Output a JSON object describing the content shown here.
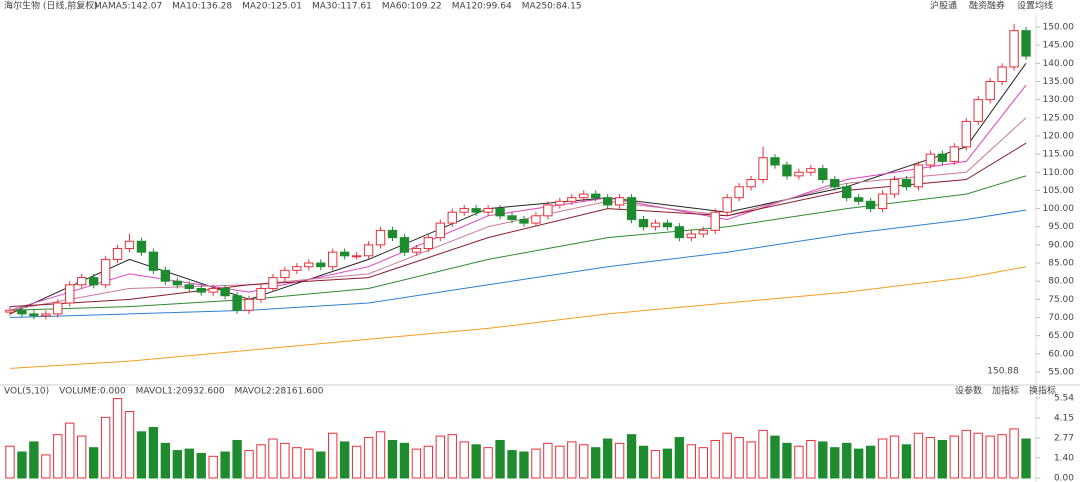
{
  "chart_data": {
    "type": "candlestick",
    "title": "海尔生物 (日线,前复权)",
    "ma_prefix": "MA",
    "toolbar": [
      "沪股通",
      "融资融券",
      "设置均线"
    ],
    "max_label": "150.88",
    "up_color": "#e8303a",
    "down_color": "#1e8c2e",
    "open": [
      71.5,
      72,
      71,
      70.5,
      71,
      74,
      79,
      81,
      79,
      86,
      89,
      91,
      88,
      83,
      80,
      79,
      78,
      77,
      78,
      76,
      72,
      75,
      78,
      81,
      83,
      84,
      85,
      84,
      88,
      87,
      87,
      90,
      94,
      92,
      88,
      89,
      92,
      96,
      99,
      100,
      99,
      100,
      98,
      97,
      96,
      98,
      101,
      102,
      103,
      104,
      103,
      101,
      103,
      97,
      95,
      96,
      95,
      92,
      93,
      94,
      99,
      103,
      106,
      108,
      114,
      112,
      109,
      110,
      111,
      108,
      106,
      103,
      102,
      100,
      104,
      108,
      106,
      112,
      115,
      113,
      117,
      124,
      130,
      135,
      139,
      149
    ],
    "high": [
      73,
      73,
      72,
      72,
      75,
      80,
      82,
      82,
      87,
      90,
      93,
      92,
      89,
      84,
      81,
      80,
      79,
      79,
      79,
      77,
      76,
      79,
      82,
      84,
      85,
      86,
      86,
      89,
      89,
      88,
      91,
      95,
      95,
      93,
      90,
      93,
      97,
      100,
      101,
      101,
      101,
      101,
      99,
      98,
      99,
      102,
      103,
      104,
      105,
      105,
      104,
      104,
      104,
      98,
      97,
      97,
      96,
      94,
      95,
      100,
      104,
      107,
      109,
      117,
      115,
      113,
      111,
      112,
      112,
      109,
      107,
      104,
      103,
      105,
      109,
      109,
      113,
      116,
      116,
      118,
      125,
      131,
      136,
      140,
      150.88,
      150
    ],
    "low": [
      70.5,
      70,
      69.5,
      69.5,
      70,
      73,
      78,
      78,
      78,
      85,
      88,
      87,
      82,
      79,
      78,
      77,
      76,
      76,
      75,
      71,
      71,
      74,
      77,
      80,
      82,
      83,
      83,
      83,
      86,
      86,
      86,
      89,
      91,
      87,
      87,
      88,
      91,
      95,
      98,
      98,
      98,
      97,
      96,
      95,
      95,
      97,
      100,
      101,
      102,
      102,
      100,
      100,
      96,
      94,
      94,
      94,
      91,
      91,
      92,
      93,
      98,
      102,
      105,
      107,
      111,
      108,
      108,
      109,
      107,
      105,
      102,
      101,
      99,
      99,
      103,
      105,
      105,
      111,
      112,
      112,
      116,
      123,
      129,
      134,
      138,
      141
    ],
    "close": [
      72,
      71,
      70.5,
      71,
      74,
      79,
      81,
      79,
      86,
      89,
      91,
      88,
      83,
      80,
      79,
      78,
      77,
      78,
      76,
      72,
      75,
      78,
      81,
      83,
      84,
      85,
      84,
      88,
      87,
      87,
      90,
      94,
      92,
      88,
      89,
      92,
      96,
      99,
      100,
      99,
      100,
      98,
      97,
      96,
      98,
      101,
      102,
      103,
      104,
      103,
      101,
      103,
      97,
      95,
      96,
      95,
      92,
      93,
      94,
      99,
      103,
      106,
      108,
      114,
      112,
      109,
      110,
      111,
      108,
      106,
      103,
      102,
      100,
      104,
      108,
      106,
      112,
      115,
      113,
      117,
      124,
      130,
      135,
      139,
      149,
      142
    ],
    "ylim": [
      55,
      150
    ],
    "yticks": [
      {
        "value": 150,
        "label": "150.00"
      },
      {
        "value": 145,
        "label": "145.00"
      },
      {
        "value": 140,
        "label": "140.00"
      },
      {
        "value": 135,
        "label": "135.00"
      },
      {
        "value": 130,
        "label": "130.00"
      },
      {
        "value": 125,
        "label": "125.00"
      },
      {
        "value": 120,
        "label": "120.00"
      },
      {
        "value": 115,
        "label": "115.00"
      },
      {
        "value": 110,
        "label": "110.00"
      },
      {
        "value": 105,
        "label": "105.00"
      },
      {
        "value": 100,
        "label": "100.00"
      },
      {
        "value": 95,
        "label": "95.00"
      },
      {
        "value": 90,
        "label": "90.00"
      },
      {
        "value": 85,
        "label": "85.00"
      },
      {
        "value": 80,
        "label": "80.00"
      },
      {
        "value": 75,
        "label": "75.00"
      },
      {
        "value": 70,
        "label": "70.00"
      },
      {
        "value": 65,
        "label": "65.00"
      },
      {
        "value": 60,
        "label": "60.00"
      },
      {
        "value": 55,
        "label": "55.00"
      }
    ],
    "ma": [
      {
        "name": "MA5:142.07",
        "color": "#222222",
        "x": [
          0,
          10,
          20,
          30,
          40,
          50,
          60,
          70,
          80,
          85
        ],
        "values": [
          71,
          86,
          75,
          86,
          100,
          103,
          99,
          106,
          117,
          140
        ]
      },
      {
        "name": "MA10:136.28",
        "color": "#e040c0",
        "x": [
          0,
          10,
          20,
          30,
          40,
          50,
          60,
          70,
          80,
          85
        ],
        "values": [
          72,
          82,
          77,
          84,
          98,
          103,
          97,
          108,
          113,
          134
        ]
      },
      {
        "name": "MA20:125.01",
        "color": "#c87898",
        "x": [
          0,
          10,
          20,
          30,
          40,
          50,
          60,
          70,
          80,
          85
        ],
        "values": [
          72,
          78,
          79,
          82,
          95,
          102,
          98,
          107,
          110,
          125
        ]
      },
      {
        "name": "MA30:117.61",
        "color": "#8a1a2a",
        "x": [
          0,
          10,
          20,
          30,
          40,
          50,
          60,
          70,
          80,
          85
        ],
        "values": [
          73,
          75,
          79,
          81,
          92,
          100,
          98,
          105,
          108,
          118
        ]
      },
      {
        "name": "MA60:109.22",
        "color": "#2e8b2e",
        "x": [
          0,
          10,
          20,
          30,
          40,
          50,
          60,
          70,
          80,
          85
        ],
        "values": [
          72,
          73,
          75,
          78,
          86,
          92,
          95,
          100,
          104,
          109
        ]
      },
      {
        "name": "MA120:99.64",
        "color": "#2f7fd0",
        "x": [
          0,
          10,
          20,
          30,
          40,
          50,
          60,
          70,
          80,
          85
        ],
        "values": [
          70,
          71,
          72,
          74,
          79,
          84,
          88,
          93,
          97,
          99.6
        ]
      },
      {
        "name": "MA250:84.15",
        "color": "#f0a020",
        "x": [
          0,
          10,
          20,
          30,
          40,
          50,
          60,
          70,
          80,
          85
        ],
        "values": [
          56,
          58,
          61,
          64,
          67,
          71,
          74,
          77,
          81,
          84
        ]
      }
    ],
    "volume_header": [
      "VOL(5,10)",
      "VOLUME:0.000",
      "MAVOL1:20932.600",
      "MAVOL2:28161.600"
    ],
    "volume_toolbar": [
      "设参数",
      "加指标",
      "换指标"
    ],
    "volume": [
      2.2,
      1.8,
      2.5,
      1.6,
      3.0,
      3.8,
      2.9,
      2.1,
      4.2,
      5.5,
      4.6,
      3.2,
      3.5,
      2.4,
      1.9,
      2.0,
      1.7,
      1.5,
      1.8,
      2.6,
      1.9,
      2.3,
      2.7,
      2.4,
      2.1,
      2.0,
      1.8,
      3.1,
      2.5,
      2.2,
      2.8,
      3.2,
      2.6,
      2.4,
      2.0,
      2.2,
      2.9,
      3.0,
      2.5,
      2.3,
      2.1,
      2.6,
      1.9,
      1.8,
      2.0,
      2.4,
      2.2,
      2.5,
      2.3,
      2.1,
      2.7,
      2.4,
      3.0,
      2.2,
      1.9,
      2.0,
      2.8,
      2.3,
      2.1,
      2.6,
      3.1,
      2.8,
      2.5,
      3.3,
      2.9,
      2.4,
      2.2,
      2.6,
      2.5,
      2.1,
      2.4,
      2.0,
      2.2,
      2.7,
      2.9,
      2.3,
      3.1,
      2.8,
      2.6,
      2.9,
      3.3,
      3.1,
      2.9,
      3.0,
      3.4,
      2.7
    ],
    "vlim": [
      0,
      5.54
    ],
    "vticks": [
      {
        "value": 5.54,
        "label": "5.54"
      },
      {
        "value": 4.15,
        "label": "4.15"
      },
      {
        "value": 2.77,
        "label": "2.77"
      },
      {
        "value": 1.4,
        "label": "1.40"
      },
      {
        "value": 0,
        "label": "0.00"
      }
    ]
  }
}
